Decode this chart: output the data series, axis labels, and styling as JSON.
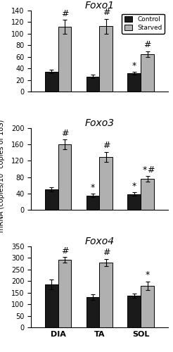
{
  "panels": [
    {
      "title": "Foxo1",
      "ylim": [
        0,
        140
      ],
      "yticks": [
        0,
        20,
        40,
        60,
        80,
        100,
        120,
        140
      ],
      "groups": [
        "DIA",
        "TA",
        "SOL"
      ],
      "control_means": [
        35,
        26,
        32
      ],
      "starved_means": [
        112,
        113,
        65
      ],
      "control_sems": [
        3,
        3,
        2
      ],
      "starved_sems": [
        12,
        13,
        5
      ],
      "annotations": {
        "DIA_starved": [
          "#"
        ],
        "TA_starved": [
          "#"
        ],
        "SOL_control": [
          "*"
        ],
        "SOL_starved": [
          "#"
        ]
      }
    },
    {
      "title": "Foxo3",
      "ylim": [
        0,
        200
      ],
      "yticks": [
        0,
        40,
        80,
        120,
        160,
        200
      ],
      "groups": [
        "DIA",
        "TA",
        "SOL"
      ],
      "control_means": [
        50,
        35,
        38
      ],
      "starved_means": [
        160,
        130,
        75
      ],
      "control_sems": [
        5,
        4,
        4
      ],
      "starved_sems": [
        12,
        12,
        7
      ],
      "annotations": {
        "DIA_starved": [
          "#"
        ],
        "TA_control": [
          "*"
        ],
        "TA_starved": [
          "#"
        ],
        "SOL_control": [
          "*"
        ],
        "SOL_starved": [
          "*",
          "#"
        ]
      }
    },
    {
      "title": "Foxo4",
      "ylim": [
        0,
        350
      ],
      "yticks": [
        0,
        50,
        100,
        150,
        200,
        250,
        300,
        350
      ],
      "groups": [
        "DIA",
        "TA",
        "SOL"
      ],
      "control_means": [
        185,
        130,
        137
      ],
      "starved_means": [
        290,
        280,
        180
      ],
      "control_sems": [
        20,
        12,
        10
      ],
      "starved_sems": [
        12,
        15,
        18
      ],
      "annotations": {
        "DIA_starved": [
          "#"
        ],
        "TA_starved": [
          "#"
        ],
        "SOL_starved": [
          "*"
        ]
      }
    }
  ],
  "control_color": "#1a1a1a",
  "starved_color": "#b0b0b0",
  "bar_width": 0.32,
  "ylabel": "mRNA (copies/10⁴ copies of 18S)",
  "xlabel_groups": [
    "DIA",
    "TA",
    "SOL"
  ],
  "legend_labels": [
    "Control",
    "Starved"
  ],
  "title_fontsize": 10,
  "axis_fontsize": 8,
  "tick_fontsize": 7,
  "annot_fontsize": 9
}
